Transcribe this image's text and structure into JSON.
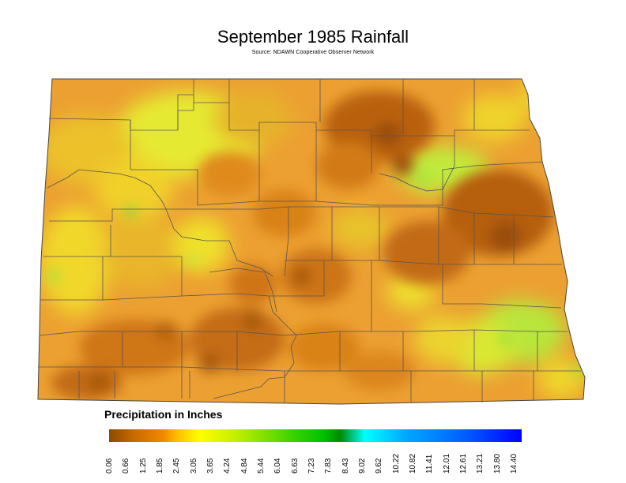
{
  "title": "September 1985 Rainfall",
  "subtitle": "Source: NDAWN Cooperative Observer Network",
  "legend": {
    "title": "Precipitation in Inches",
    "ticks": [
      "0.06",
      "0.66",
      "1.25",
      "1.85",
      "2.45",
      "3.05",
      "3.65",
      "4.24",
      "4.84",
      "5.44",
      "6.04",
      "6.63",
      "7.23",
      "7.83",
      "8.43",
      "9.02",
      "9.62",
      "10.22",
      "10.82",
      "11.41",
      "12.01",
      "12.61",
      "13.21",
      "13.80",
      "14.40"
    ],
    "colors": [
      "#8b4a00",
      "#c86a00",
      "#f08800",
      "#ffc400",
      "#ffff00",
      "#c8f000",
      "#7ce000",
      "#2cd000",
      "#00c000",
      "#008a00",
      "#00ffff",
      "#00a8ff",
      "#0060ff",
      "#0000ff"
    ]
  },
  "map": {
    "region": "North Dakota",
    "palette": {
      "dark_brown": "#a65a08",
      "orange": "#e88a10",
      "light_orange": "#f3a82a",
      "yellow": "#f6e11d",
      "yellow_green": "#d7ef2c",
      "light_green": "#9fe23a"
    }
  }
}
